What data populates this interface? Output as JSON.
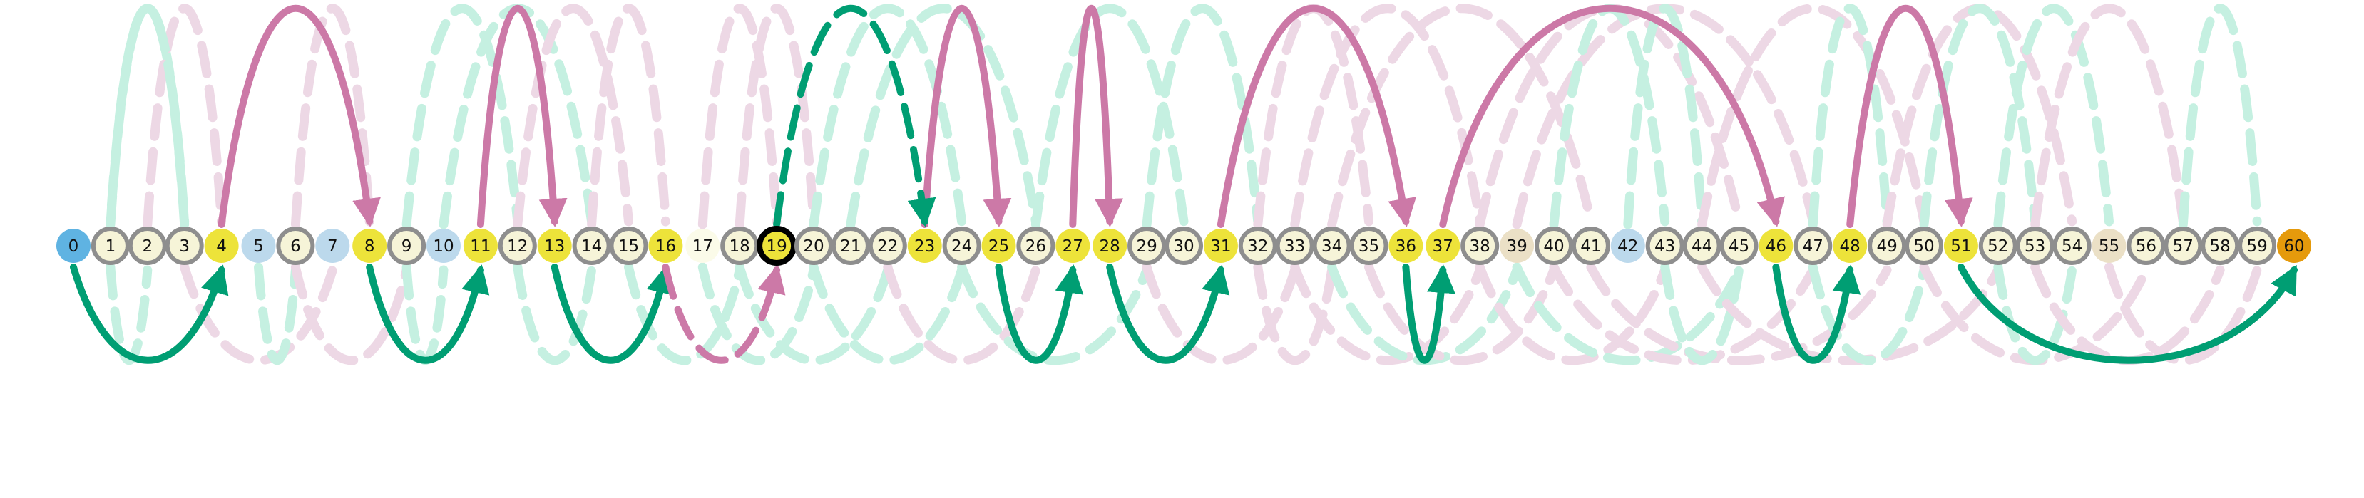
{
  "colors": {
    "node_fill": "#f6f4d8",
    "node_ring": "#8e8e8e",
    "hub_fill": "#ede33a",
    "blue_fill": "#bcd9ec",
    "start_fill": "#5fb3e2",
    "end_fill": "#e59a0c",
    "beige_fill": "#ebe0c6",
    "pale_fill": "#fbfbe9",
    "current_ring": "#000000",
    "pink_arc": "#cc79a7",
    "green_arc": "#009e73",
    "faint_pink": "#edd8e5",
    "faint_green": "#c5f0e1"
  },
  "nodes": [
    {
      "label": "0",
      "kind": "start"
    },
    {
      "label": "1",
      "kind": "normal"
    },
    {
      "label": "2",
      "kind": "normal"
    },
    {
      "label": "3",
      "kind": "normal"
    },
    {
      "label": "4",
      "kind": "hub"
    },
    {
      "label": "5",
      "kind": "blue"
    },
    {
      "label": "6",
      "kind": "normal"
    },
    {
      "label": "7",
      "kind": "blue"
    },
    {
      "label": "8",
      "kind": "hub"
    },
    {
      "label": "9",
      "kind": "normal"
    },
    {
      "label": "10",
      "kind": "blue"
    },
    {
      "label": "11",
      "kind": "hub"
    },
    {
      "label": "12",
      "kind": "normal"
    },
    {
      "label": "13",
      "kind": "hub"
    },
    {
      "label": "14",
      "kind": "normal"
    },
    {
      "label": "15",
      "kind": "normal"
    },
    {
      "label": "16",
      "kind": "hub"
    },
    {
      "label": "17",
      "kind": "pale"
    },
    {
      "label": "18",
      "kind": "normal"
    },
    {
      "label": "19",
      "kind": "current"
    },
    {
      "label": "20",
      "kind": "normal"
    },
    {
      "label": "21",
      "kind": "normal"
    },
    {
      "label": "22",
      "kind": "normal"
    },
    {
      "label": "23",
      "kind": "hub"
    },
    {
      "label": "24",
      "kind": "normal"
    },
    {
      "label": "25",
      "kind": "hub"
    },
    {
      "label": "26",
      "kind": "normal"
    },
    {
      "label": "27",
      "kind": "hub"
    },
    {
      "label": "28",
      "kind": "hub"
    },
    {
      "label": "29",
      "kind": "normal"
    },
    {
      "label": "30",
      "kind": "normal"
    },
    {
      "label": "31",
      "kind": "hub"
    },
    {
      "label": "32",
      "kind": "normal"
    },
    {
      "label": "33",
      "kind": "normal"
    },
    {
      "label": "34",
      "kind": "normal"
    },
    {
      "label": "35",
      "kind": "normal"
    },
    {
      "label": "36",
      "kind": "hub"
    },
    {
      "label": "37",
      "kind": "hub"
    },
    {
      "label": "38",
      "kind": "normal"
    },
    {
      "label": "39",
      "kind": "beige"
    },
    {
      "label": "40",
      "kind": "normal"
    },
    {
      "label": "41",
      "kind": "normal"
    },
    {
      "label": "42",
      "kind": "blue"
    },
    {
      "label": "43",
      "kind": "normal"
    },
    {
      "label": "44",
      "kind": "normal"
    },
    {
      "label": "45",
      "kind": "normal"
    },
    {
      "label": "46",
      "kind": "hub"
    },
    {
      "label": "47",
      "kind": "normal"
    },
    {
      "label": "48",
      "kind": "hub"
    },
    {
      "label": "49",
      "kind": "normal"
    },
    {
      "label": "50",
      "kind": "normal"
    },
    {
      "label": "51",
      "kind": "hub"
    },
    {
      "label": "52",
      "kind": "normal"
    },
    {
      "label": "53",
      "kind": "normal"
    },
    {
      "label": "54",
      "kind": "normal"
    },
    {
      "label": "55",
      "kind": "beige"
    },
    {
      "label": "56",
      "kind": "normal"
    },
    {
      "label": "57",
      "kind": "normal"
    },
    {
      "label": "58",
      "kind": "normal"
    },
    {
      "label": "59",
      "kind": "normal"
    },
    {
      "label": "60",
      "kind": "end"
    }
  ],
  "bold_edges": [
    {
      "from": 4,
      "to": 8,
      "color": "pink",
      "side": "above",
      "style": "solid"
    },
    {
      "from": 11,
      "to": 13,
      "color": "pink",
      "side": "above",
      "style": "solid"
    },
    {
      "from": 23,
      "to": 25,
      "color": "pink",
      "side": "above",
      "style": "solid"
    },
    {
      "from": 27,
      "to": 28,
      "color": "pink",
      "side": "above",
      "style": "solid"
    },
    {
      "from": 31,
      "to": 36,
      "color": "pink",
      "side": "above",
      "style": "solid"
    },
    {
      "from": 37,
      "to": 46,
      "color": "pink",
      "side": "above",
      "style": "solid"
    },
    {
      "from": 48,
      "to": 51,
      "color": "pink",
      "side": "above",
      "style": "solid"
    },
    {
      "from": 19,
      "to": 23,
      "color": "green",
      "side": "above",
      "style": "dashed"
    },
    {
      "from": 0,
      "to": 4,
      "color": "green",
      "side": "below",
      "style": "solid"
    },
    {
      "from": 8,
      "to": 11,
      "color": "green",
      "side": "below",
      "style": "solid"
    },
    {
      "from": 13,
      "to": 16,
      "color": "green",
      "side": "below",
      "style": "solid"
    },
    {
      "from": 25,
      "to": 27,
      "color": "green",
      "side": "below",
      "style": "solid"
    },
    {
      "from": 28,
      "to": 31,
      "color": "green",
      "side": "below",
      "style": "solid"
    },
    {
      "from": 36,
      "to": 37,
      "color": "green",
      "side": "below",
      "style": "solid"
    },
    {
      "from": 46,
      "to": 48,
      "color": "green",
      "side": "below",
      "style": "solid"
    },
    {
      "from": 51,
      "to": 60,
      "color": "green",
      "side": "below",
      "style": "solid"
    },
    {
      "from": 16,
      "to": 19,
      "color": "pink",
      "side": "below",
      "style": "dashed"
    }
  ],
  "faint_edges": [
    {
      "from": 1,
      "to": 3,
      "color": "green",
      "side": "above"
    },
    {
      "from": 2,
      "to": 4,
      "color": "pink",
      "side": "above"
    },
    {
      "from": 3,
      "to": 1,
      "color": "green",
      "side": "above"
    },
    {
      "from": 6,
      "to": 8,
      "color": "pink",
      "side": "above"
    },
    {
      "from": 9,
      "to": 12,
      "color": "green",
      "side": "above"
    },
    {
      "from": 10,
      "to": 14,
      "color": "green",
      "side": "above"
    },
    {
      "from": 12,
      "to": 15,
      "color": "pink",
      "side": "above"
    },
    {
      "from": 14,
      "to": 16,
      "color": "pink",
      "side": "above"
    },
    {
      "from": 17,
      "to": 19,
      "color": "pink",
      "side": "above"
    },
    {
      "from": 18,
      "to": 20,
      "color": "pink",
      "side": "above"
    },
    {
      "from": 20,
      "to": 24,
      "color": "green",
      "side": "above"
    },
    {
      "from": 21,
      "to": 26,
      "color": "green",
      "side": "above"
    },
    {
      "from": 26,
      "to": 30,
      "color": "green",
      "side": "above"
    },
    {
      "from": 29,
      "to": 32,
      "color": "green",
      "side": "above"
    },
    {
      "from": 32,
      "to": 35,
      "color": "pink",
      "side": "above"
    },
    {
      "from": 33,
      "to": 38,
      "color": "pink",
      "side": "above"
    },
    {
      "from": 34,
      "to": 41,
      "color": "pink",
      "side": "above"
    },
    {
      "from": 38,
      "to": 45,
      "color": "pink",
      "side": "above"
    },
    {
      "from": 39,
      "to": 47,
      "color": "pink",
      "side": "above"
    },
    {
      "from": 40,
      "to": 43,
      "color": "green",
      "side": "above"
    },
    {
      "from": 42,
      "to": 44,
      "color": "green",
      "side": "above"
    },
    {
      "from": 44,
      "to": 50,
      "color": "pink",
      "side": "above"
    },
    {
      "from": 47,
      "to": 49,
      "color": "green",
      "side": "above"
    },
    {
      "from": 49,
      "to": 54,
      "color": "pink",
      "side": "above"
    },
    {
      "from": 50,
      "to": 53,
      "color": "green",
      "side": "above"
    },
    {
      "from": 52,
      "to": 55,
      "color": "green",
      "side": "above"
    },
    {
      "from": 53,
      "to": 57,
      "color": "pink",
      "side": "above"
    },
    {
      "from": 57,
      "to": 59,
      "color": "green",
      "side": "above"
    },
    {
      "from": 1,
      "to": 2,
      "color": "green",
      "side": "below"
    },
    {
      "from": 3,
      "to": 7,
      "color": "pink",
      "side": "below"
    },
    {
      "from": 5,
      "to": 6,
      "color": "green",
      "side": "below"
    },
    {
      "from": 6,
      "to": 9,
      "color": "pink",
      "side": "below"
    },
    {
      "from": 9,
      "to": 10,
      "color": "green",
      "side": "below"
    },
    {
      "from": 12,
      "to": 14,
      "color": "green",
      "side": "below"
    },
    {
      "from": 15,
      "to": 18,
      "color": "green",
      "side": "below"
    },
    {
      "from": 17,
      "to": 20,
      "color": "green",
      "side": "below"
    },
    {
      "from": 18,
      "to": 22,
      "color": "green",
      "side": "below"
    },
    {
      "from": 20,
      "to": 24,
      "color": "green",
      "side": "below"
    },
    {
      "from": 22,
      "to": 26,
      "color": "pink",
      "side": "below"
    },
    {
      "from": 24,
      "to": 29,
      "color": "green",
      "side": "below"
    },
    {
      "from": 29,
      "to": 33,
      "color": "pink",
      "side": "below"
    },
    {
      "from": 32,
      "to": 34,
      "color": "pink",
      "side": "below"
    },
    {
      "from": 33,
      "to": 38,
      "color": "pink",
      "side": "below"
    },
    {
      "from": 34,
      "to": 39,
      "color": "green",
      "side": "below"
    },
    {
      "from": 35,
      "to": 40,
      "color": "pink",
      "side": "below"
    },
    {
      "from": 38,
      "to": 43,
      "color": "pink",
      "side": "below"
    },
    {
      "from": 39,
      "to": 45,
      "color": "green",
      "side": "below"
    },
    {
      "from": 40,
      "to": 47,
      "color": "pink",
      "side": "below"
    },
    {
      "from": 41,
      "to": 49,
      "color": "pink",
      "side": "below"
    },
    {
      "from": 43,
      "to": 45,
      "color": "green",
      "side": "below"
    },
    {
      "from": 44,
      "to": 52,
      "color": "pink",
      "side": "below"
    },
    {
      "from": 47,
      "to": 50,
      "color": "green",
      "side": "below"
    },
    {
      "from": 50,
      "to": 56,
      "color": "pink",
      "side": "below"
    },
    {
      "from": 52,
      "to": 54,
      "color": "green",
      "side": "below"
    },
    {
      "from": 53,
      "to": 58,
      "color": "pink",
      "side": "below"
    },
    {
      "from": 55,
      "to": 59,
      "color": "pink",
      "side": "below"
    }
  ]
}
